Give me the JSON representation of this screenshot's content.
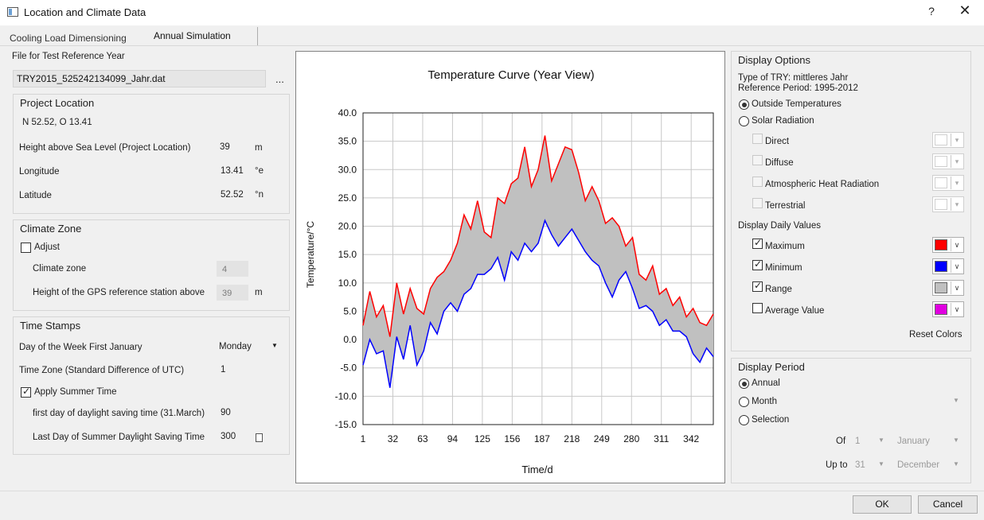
{
  "window": {
    "title": "Location and Climate Data",
    "help": "?",
    "close": "✕"
  },
  "tabs": [
    {
      "label": "Cooling Load Dimensioning"
    },
    {
      "label": "Annual Simulation"
    }
  ],
  "file_section": {
    "label": "File for Test Reference Year",
    "value": "TRY2015_525242134099_Jahr.dat",
    "browse": "..."
  },
  "project_location": {
    "title": "Project Location",
    "coords": "N 52.52, O 13.41",
    "rows": [
      {
        "label": "Height above Sea Level (Project Location)",
        "value": "39",
        "unit": "m"
      },
      {
        "label": "Longitude",
        "value": "13.41",
        "unit": "°e"
      },
      {
        "label": "Latitude",
        "value": "52.52",
        "unit": "°n"
      }
    ]
  },
  "climate_zone": {
    "title": "Climate Zone",
    "adjust_label": "Adjust",
    "zone_label": "Climate zone",
    "zone_value": "4",
    "gps_label": "Height of the GPS reference station above",
    "gps_value": "39",
    "gps_unit": "m"
  },
  "time_stamps": {
    "title": "Time Stamps",
    "day_label": "Day of the Week First January",
    "day_value": "Monday",
    "tz_label": "Time Zone (Standard Difference of UTC)",
    "tz_value": "1",
    "summer_label": "Apply Summer Time",
    "first_label": "first day of daylight saving time (31.March)",
    "first_value": "90",
    "last_label": "Last Day of Summer Daylight Saving Time",
    "last_value": "300"
  },
  "display_options": {
    "title": "Display Options",
    "try_type": "Type of TRY: mittleres Jahr",
    "ref_period": "Reference Period: 1995-2012",
    "outside_label": "Outside Temperatures",
    "solar_label": "Solar Radiation",
    "solar_items": [
      {
        "label": "Direct"
      },
      {
        "label": "Diffuse"
      },
      {
        "label": "Atmospheric Heat Radiation"
      },
      {
        "label": "Terrestrial"
      }
    ],
    "daily_title": "Display Daily Values",
    "daily_items": [
      {
        "label": "Maximum",
        "checked": true,
        "color": "#ff0000"
      },
      {
        "label": "Minimum",
        "checked": true,
        "color": "#0000ff"
      },
      {
        "label": "Range",
        "checked": true,
        "color": "#c0c0c0"
      },
      {
        "label": "Average Value",
        "checked": false,
        "color": "#e000e0"
      }
    ],
    "reset_label": "Reset Colors"
  },
  "display_period": {
    "title": "Display Period",
    "annual": "Annual",
    "month": "Month",
    "selection": "Selection",
    "of_label": "Of",
    "of_day": "1",
    "of_month": "January",
    "upto_label": "Up to",
    "upto_day": "31",
    "upto_month": "December"
  },
  "buttons": {
    "ok": "OK",
    "cancel": "Cancel"
  },
  "chart_data": {
    "type": "area",
    "title": "Temperature Curve (Year View)",
    "xlabel": "Time/d",
    "ylabel": "Temperature/°C",
    "xlim": [
      1,
      365
    ],
    "ylim": [
      -15,
      40
    ],
    "xticks": [
      1,
      32,
      63,
      94,
      125,
      156,
      187,
      218,
      249,
      280,
      311,
      342
    ],
    "yticks": [
      40,
      35,
      30,
      25,
      20,
      15,
      10,
      5,
      0,
      -5,
      -10,
      -15
    ],
    "ytick_labels": [
      "40.0",
      "35.0",
      "30.0",
      "25.0",
      "20.0",
      "15.0",
      "10.0",
      "5.0",
      "0.0",
      "-5.0",
      "-10.0",
      "-15.0"
    ],
    "grid": true,
    "series_step_days": 7,
    "series": [
      {
        "name": "Maximum",
        "color": "#ff0000",
        "values": [
          2.5,
          8.5,
          4.0,
          6.0,
          0.5,
          10.0,
          4.5,
          9.0,
          5.5,
          4.5,
          9.0,
          11.0,
          12.0,
          14.0,
          17.0,
          22.0,
          19.5,
          24.5,
          19.0,
          18.0,
          25.0,
          24.0,
          27.5,
          28.5,
          34.0,
          27.0,
          30.0,
          36.0,
          28.0,
          31.0,
          34.0,
          33.5,
          29.5,
          24.5,
          27.0,
          24.5,
          20.5,
          21.5,
          20.0,
          16.5,
          18.0,
          11.5,
          10.5,
          13.0,
          8.0,
          9.0,
          6.0,
          7.5,
          4.0,
          5.5,
          3.0,
          2.5,
          4.5
        ]
      },
      {
        "name": "Minimum",
        "color": "#0000ff",
        "values": [
          -4.5,
          0.0,
          -2.5,
          -2.0,
          -8.5,
          0.5,
          -3.5,
          2.5,
          -4.5,
          -2.0,
          3.0,
          1.0,
          5.0,
          6.5,
          5.0,
          8.0,
          9.0,
          11.5,
          11.5,
          12.5,
          14.5,
          10.5,
          15.5,
          14.0,
          17.0,
          15.5,
          17.0,
          21.0,
          18.5,
          16.5,
          18.0,
          19.5,
          17.5,
          15.5,
          14.0,
          13.0,
          10.0,
          7.5,
          10.5,
          12.0,
          9.0,
          5.5,
          6.0,
          5.0,
          2.5,
          3.5,
          1.5,
          1.5,
          0.5,
          -2.5,
          -4.0,
          -1.5,
          -3.0
        ]
      }
    ]
  }
}
